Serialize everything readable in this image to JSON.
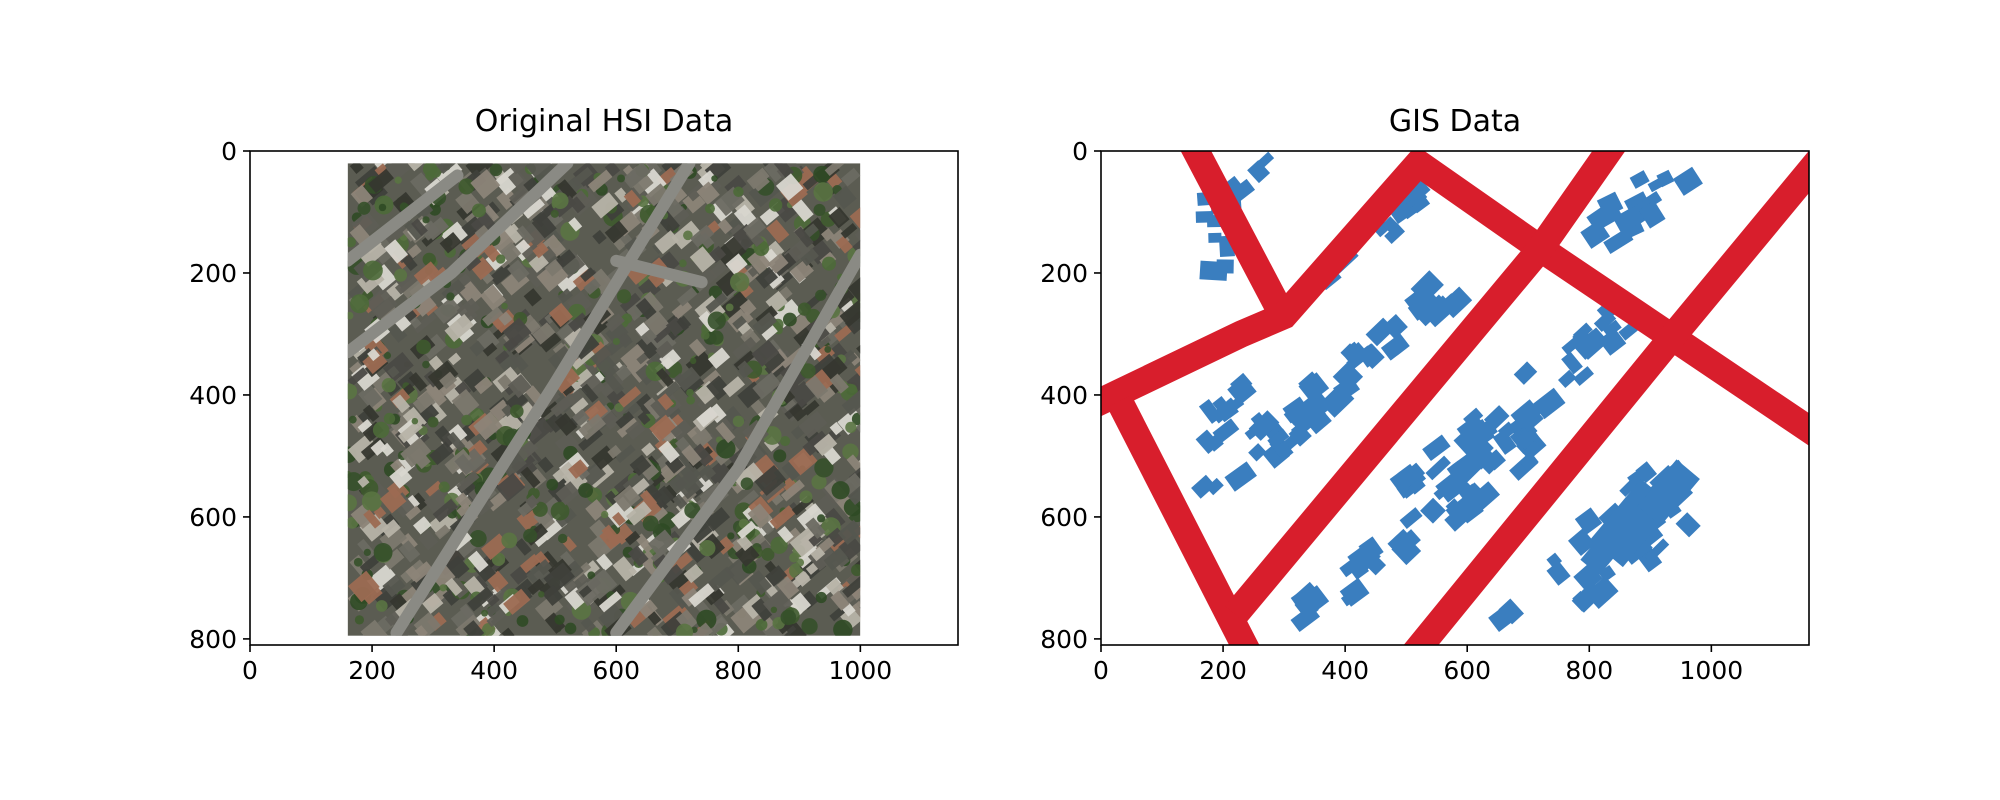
{
  "figure": {
    "panels": [
      {
        "title": "Original HSI Data",
        "kind": "aerial-image",
        "x_ticks": [
          "0",
          "200",
          "400",
          "600",
          "800",
          "1000"
        ],
        "y_ticks": [
          "0",
          "200",
          "400",
          "600",
          "800"
        ],
        "xlim": [
          0,
          1160
        ],
        "ylim": [
          0,
          810
        ],
        "image_extent": {
          "x": [
            160,
            1000
          ],
          "y": [
            20,
            795
          ]
        }
      },
      {
        "title": "GIS Data",
        "kind": "vector-map",
        "x_ticks": [
          "0",
          "200",
          "400",
          "600",
          "800",
          "1000"
        ],
        "y_ticks": [
          "0",
          "200",
          "400",
          "600",
          "800"
        ],
        "xlim": [
          0,
          1160
        ],
        "ylim": [
          0,
          810
        ],
        "layers": {
          "roads": {
            "color": "#d81e2c"
          },
          "buildings": {
            "color": "#3a7ebf"
          }
        }
      }
    ],
    "colors": {
      "road": "#d81e2c",
      "building": "#3a7ebf",
      "roof_dark": "#4a4a44",
      "vegetation": "#4c6a38",
      "asphalt": "#8a8a84"
    }
  }
}
